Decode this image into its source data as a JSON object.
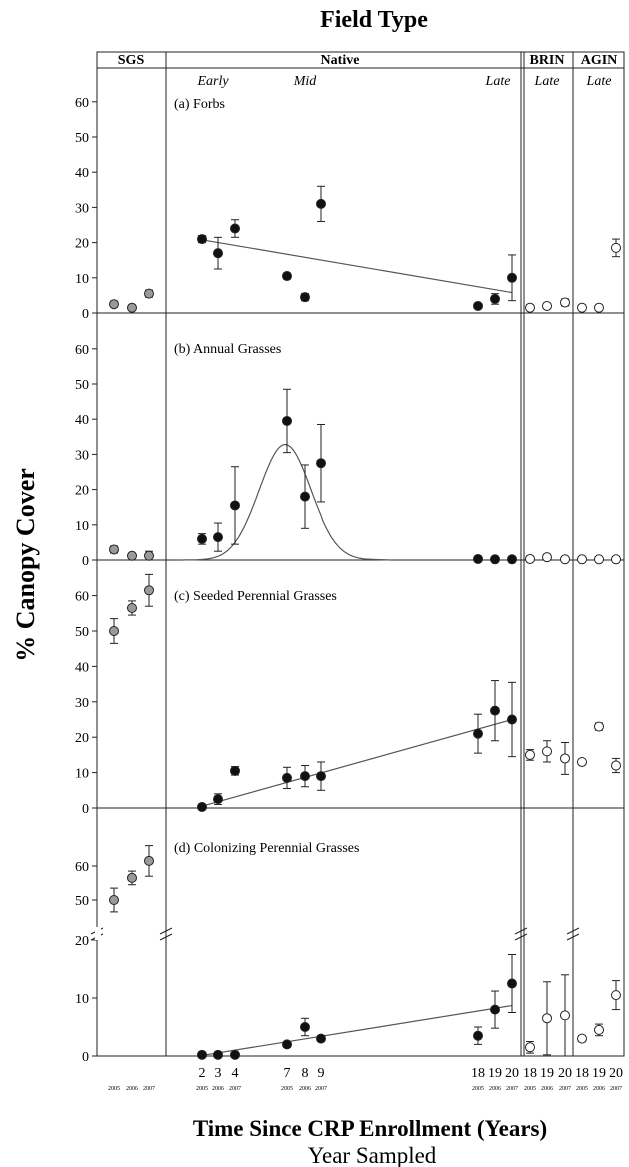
{
  "figure": {
    "title": "Field Type",
    "xlabel": "Time Since CRP Enrollment (Years)",
    "xsublabel": "Year Sampled",
    "ylabel": "% Canopy Cover",
    "sections": [
      {
        "key": "SGS",
        "label": "SGS",
        "age": ""
      },
      {
        "key": "native",
        "label": "Native",
        "age": ""
      },
      {
        "key": "BRIN",
        "label": "BRIN",
        "age": "Late"
      },
      {
        "key": "AGIN",
        "label": "AGIN",
        "age": "Late"
      }
    ],
    "native_ages": [
      "Early",
      "Mid",
      "Late"
    ],
    "x_ticks": [
      "2",
      "3",
      "4",
      "7",
      "8",
      "9",
      "18",
      "19",
      "20",
      "18",
      "19",
      "20",
      "18",
      "19",
      "20"
    ],
    "year_ticks": [
      "2005",
      "2006",
      "2007",
      "2005",
      "2006",
      "2007",
      "2005",
      "2006",
      "2007",
      "2005",
      "2006",
      "2007",
      "2005",
      "2006",
      "2007"
    ],
    "colors": {
      "sgs": "#9a9a9a",
      "native": "#111111",
      "introduced": "#ffffff",
      "line": "#555555",
      "axis": "#222222"
    }
  },
  "chart_data": [
    {
      "type": "scatter",
      "title": "(a) Forbs",
      "ylim": [
        0,
        65
      ],
      "yticks": [
        0,
        10,
        20,
        30,
        40,
        50,
        60
      ],
      "series": [
        {
          "name": "SGS",
          "points": [
            {
              "x": "2005",
              "y": 2.5,
              "err": 0.8
            },
            {
              "x": "2006",
              "y": 1.5,
              "err": 0.5
            },
            {
              "x": "2007",
              "y": 5.5,
              "err": 1.0
            }
          ]
        },
        {
          "name": "Native",
          "points": [
            {
              "x": 2,
              "y": 21,
              "err": 1
            },
            {
              "x": 3,
              "y": 17,
              "err": 4.5
            },
            {
              "x": 4,
              "y": 24,
              "err": 2.5
            },
            {
              "x": 7,
              "y": 10.5,
              "err": 0.8
            },
            {
              "x": 8,
              "y": 4.5,
              "err": 1
            },
            {
              "x": 9,
              "y": 31,
              "err": 5
            },
            {
              "x": 18,
              "y": 2,
              "err": 0.5
            },
            {
              "x": 19,
              "y": 4,
              "err": 1.5
            },
            {
              "x": 20,
              "y": 10,
              "err": 6.5
            }
          ]
        },
        {
          "name": "BRIN",
          "points": [
            {
              "x": 18,
              "y": 1.5,
              "err": 0.8
            },
            {
              "x": 19,
              "y": 2,
              "err": 0.7
            },
            {
              "x": 20,
              "y": 3,
              "err": 1
            }
          ]
        },
        {
          "name": "AGIN",
          "points": [
            {
              "x": 18,
              "y": 1.5,
              "err": 0.5
            },
            {
              "x": 19,
              "y": 1.5,
              "err": 0.5
            },
            {
              "x": 20,
              "y": 18.5,
              "err": 2.5
            }
          ]
        }
      ],
      "fit": {
        "kind": "linear",
        "from": [
          2,
          20.8
        ],
        "to": [
          20,
          5.8
        ]
      }
    },
    {
      "type": "scatter",
      "title": "(b) Annual Grasses",
      "ylim": [
        0,
        65
      ],
      "yticks": [
        0,
        10,
        20,
        30,
        40,
        50,
        60
      ],
      "series": [
        {
          "name": "SGS",
          "points": [
            {
              "x": "2005",
              "y": 3,
              "err": 1
            },
            {
              "x": "2006",
              "y": 1.2,
              "err": 0.6
            },
            {
              "x": "2007",
              "y": 1.2,
              "err": 1.3
            }
          ]
        },
        {
          "name": "Native",
          "points": [
            {
              "x": 2,
              "y": 6,
              "err": 1.5
            },
            {
              "x": 3,
              "y": 6.5,
              "err": 4
            },
            {
              "x": 4,
              "y": 15.5,
              "err": 11
            },
            {
              "x": 7,
              "y": 39.5,
              "err": 9
            },
            {
              "x": 8,
              "y": 18,
              "err": 9
            },
            {
              "x": 9,
              "y": 27.5,
              "err": 11
            },
            {
              "x": 18,
              "y": 0.3,
              "err": 0.2
            },
            {
              "x": 19,
              "y": 0.2,
              "err": 0.2
            },
            {
              "x": 20,
              "y": 0.2,
              "err": 0.2
            }
          ]
        },
        {
          "name": "BRIN",
          "points": [
            {
              "x": 18,
              "y": 0.3,
              "err": 0.2
            },
            {
              "x": 19,
              "y": 0.8,
              "err": 0.6
            },
            {
              "x": 20,
              "y": 0.2,
              "err": 0.2
            }
          ]
        },
        {
          "name": "AGIN",
          "points": [
            {
              "x": 18,
              "y": 0.2,
              "err": 0.2
            },
            {
              "x": 19,
              "y": 0.2,
              "err": 0.2
            },
            {
              "x": 20,
              "y": 0.2,
              "err": 0.2
            }
          ]
        }
      ],
      "fit": {
        "kind": "gaussian",
        "peak": 32.8,
        "mu": 6.9,
        "sigma": 1.5,
        "range": [
          0.5,
          11.5
        ]
      }
    },
    {
      "type": "scatter",
      "title": "(c) Seeded Perennial Grasses",
      "ylim": [
        0,
        65
      ],
      "yticks": [
        0,
        10,
        20,
        30,
        40,
        50,
        60
      ],
      "series": [
        {
          "name": "SGS",
          "points": [
            {
              "x": "2005",
              "y": 50,
              "err": 3.5
            },
            {
              "x": "2006",
              "y": 56.5,
              "err": 2
            },
            {
              "x": "2007",
              "y": 61.5,
              "err": 4.5
            }
          ]
        },
        {
          "name": "Native",
          "points": [
            {
              "x": 2,
              "y": 0.3,
              "err": 0.3
            },
            {
              "x": 3,
              "y": 2.5,
              "err": 1.5
            },
            {
              "x": 4,
              "y": 10.5,
              "err": 1.2
            },
            {
              "x": 7,
              "y": 8.5,
              "err": 3
            },
            {
              "x": 8,
              "y": 9,
              "err": 3
            },
            {
              "x": 9,
              "y": 9,
              "err": 4
            },
            {
              "x": 18,
              "y": 21,
              "err": 5.5
            },
            {
              "x": 19,
              "y": 27.5,
              "err": 8.5
            },
            {
              "x": 20,
              "y": 25,
              "err": 10.5
            }
          ]
        },
        {
          "name": "BRIN",
          "points": [
            {
              "x": 18,
              "y": 15,
              "err": 1.5
            },
            {
              "x": 19,
              "y": 16,
              "err": 3
            },
            {
              "x": 20,
              "y": 14,
              "err": 4.5
            }
          ]
        },
        {
          "name": "AGIN",
          "points": [
            {
              "x": 18,
              "y": 13,
              "err": 0.6
            },
            {
              "x": 19,
              "y": 23,
              "err": 1
            },
            {
              "x": 20,
              "y": 12,
              "err": 2
            }
          ]
        }
      ],
      "fit": {
        "kind": "linear",
        "from": [
          2,
          0.5
        ],
        "to": [
          20,
          25
        ]
      }
    },
    {
      "type": "scatter",
      "title": "(d) Colonizing Perennial Grasses",
      "ylim": [
        0,
        66
      ],
      "axis_break": {
        "lower": [
          0,
          20
        ],
        "upper": [
          45,
          66
        ]
      },
      "yticks": [
        0,
        10,
        20,
        50,
        60
      ],
      "series": [
        {
          "name": "SGS",
          "points": [
            {
              "x": "2005",
              "y": 50,
              "err": 3.5
            },
            {
              "x": "2006",
              "y": 56.5,
              "err": 2
            },
            {
              "x": "2007",
              "y": 61.5,
              "err": 4.5
            }
          ]
        },
        {
          "name": "Native",
          "points": [
            {
              "x": 2,
              "y": 0.2,
              "err": 0.2
            },
            {
              "x": 3,
              "y": 0.2,
              "err": 0.2
            },
            {
              "x": 4,
              "y": 0.2,
              "err": 0.2
            },
            {
              "x": 7,
              "y": 2,
              "err": 0.5
            },
            {
              "x": 8,
              "y": 5,
              "err": 1.5
            },
            {
              "x": 9,
              "y": 3,
              "err": 0.5
            },
            {
              "x": 18,
              "y": 3.5,
              "err": 1.5
            },
            {
              "x": 19,
              "y": 8,
              "err": 3.2
            },
            {
              "x": 20,
              "y": 12.5,
              "err": 5
            }
          ]
        },
        {
          "name": "BRIN",
          "points": [
            {
              "x": 18,
              "y": 1.5,
              "err": 1
            },
            {
              "x": 19,
              "y": 6.5,
              "err": 6.3
            },
            {
              "x": 20,
              "y": 7,
              "err": 7
            }
          ]
        },
        {
          "name": "AGIN",
          "points": [
            {
              "x": 18,
              "y": 3,
              "err": 0.5
            },
            {
              "x": 19,
              "y": 4.5,
              "err": 1
            },
            {
              "x": 20,
              "y": 10.5,
              "err": 2.5
            }
          ]
        }
      ],
      "fit": {
        "kind": "linear",
        "from": [
          2,
          0.1
        ],
        "to": [
          20,
          8.7
        ]
      }
    }
  ]
}
